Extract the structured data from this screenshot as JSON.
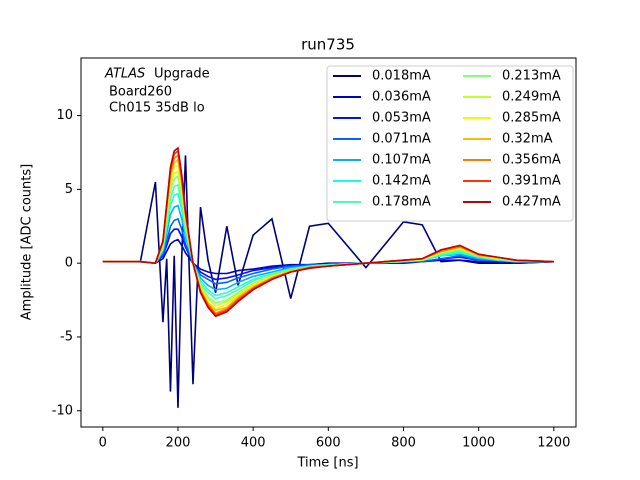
{
  "chart_data": {
    "type": "line",
    "title": "run735",
    "xlabel": "Time [ns]",
    "ylabel": "Amplitude [ADC counts]",
    "annotations": [
      "ATLAS",
      "Upgrade",
      "Board260",
      "Ch015 35dB lo"
    ],
    "xlim": [
      -58,
      1259
    ],
    "ylim": [
      -11.1,
      13.9
    ],
    "xticks": [
      0,
      200,
      400,
      600,
      800,
      1000,
      1200
    ],
    "yticks": [
      -10,
      -5,
      0,
      5,
      10
    ],
    "legend": "upper right",
    "x": [
      0,
      100,
      140,
      160,
      170,
      180,
      190,
      200,
      210,
      220,
      240,
      260,
      280,
      300,
      330,
      360,
      400,
      450,
      500,
      550,
      600,
      700,
      800,
      850,
      900,
      950,
      1000,
      1050,
      1100,
      1200
    ],
    "series": [
      {
        "name": "0.018mA",
        "color": "#00007f",
        "values": [
          0.1,
          0.1,
          5.5,
          -4,
          0.3,
          -8.7,
          0.5,
          -9.8,
          0.4,
          7.3,
          -8.2,
          3.8,
          0.2,
          -2,
          2.5,
          -1.5,
          1.9,
          3,
          -2.4,
          2.5,
          2.7,
          -0.3,
          2.8,
          2.6,
          0.1,
          0.2,
          0,
          0,
          0,
          0.1
        ]
      },
      {
        "name": "0.036mA",
        "color": "#0000c4",
        "values": [
          0.1,
          0.1,
          0,
          0.3,
          0.8,
          1.3,
          1.5,
          1.6,
          1.2,
          0.7,
          0,
          -0.4,
          -0.6,
          -0.7,
          -0.7,
          -0.5,
          -0.4,
          -0.2,
          -0.1,
          -0.1,
          0,
          0,
          0,
          0.1,
          0.2,
          0.2,
          0.1,
          0.1,
          0,
          0.1
        ]
      },
      {
        "name": "0.053mA",
        "color": "#0010ff",
        "values": [
          0.1,
          0.1,
          0,
          0.5,
          1.2,
          2,
          2.3,
          2.3,
          1.8,
          1.1,
          0,
          -0.6,
          -0.9,
          -1.1,
          -1,
          -0.8,
          -0.5,
          -0.3,
          -0.2,
          -0.1,
          -0.1,
          0,
          0.1,
          0.1,
          0.3,
          0.4,
          0.2,
          0.1,
          0.1,
          0.1
        ]
      },
      {
        "name": "0.071mA",
        "color": "#0064ff",
        "values": [
          0.1,
          0.1,
          0,
          0.6,
          1.5,
          2.5,
          2.9,
          3,
          2.3,
          1.3,
          0,
          -0.8,
          -1.1,
          -1.4,
          -1.3,
          -1,
          -0.7,
          -0.4,
          -0.2,
          -0.1,
          -0.1,
          0,
          0.1,
          0.1,
          0.3,
          0.5,
          0.2,
          0.2,
          0.1,
          0.1
        ]
      },
      {
        "name": "0.107mA",
        "color": "#00b0ff",
        "values": [
          0.1,
          0.1,
          0,
          0.8,
          2,
          3.3,
          3.8,
          3.9,
          3,
          1.8,
          0,
          -1,
          -1.5,
          -1.8,
          -1.7,
          -1.3,
          -0.9,
          -0.6,
          -0.3,
          -0.2,
          -0.1,
          0,
          0.1,
          0.2,
          0.5,
          0.6,
          0.3,
          0.2,
          0.1,
          0.1
        ]
      },
      {
        "name": "0.142mA",
        "color": "#19ffde",
        "values": [
          0.1,
          0.1,
          0,
          0.9,
          2.4,
          3.9,
          4.6,
          4.7,
          3.6,
          2.1,
          0,
          -1.2,
          -1.8,
          -2.2,
          -2,
          -1.6,
          -1.1,
          -0.7,
          -0.4,
          -0.2,
          -0.1,
          0,
          0.1,
          0.2,
          0.5,
          0.7,
          0.4,
          0.2,
          0.1,
          0.1
        ]
      },
      {
        "name": "0.178mA",
        "color": "#4dffaa",
        "values": [
          0.1,
          0.1,
          0,
          1,
          2.7,
          4.4,
          5.2,
          5.3,
          4.1,
          2.4,
          0,
          -1.4,
          -2,
          -2.4,
          -2.2,
          -1.8,
          -1.2,
          -0.7,
          -0.4,
          -0.2,
          -0.1,
          0,
          0.1,
          0.2,
          0.6,
          0.8,
          0.4,
          0.3,
          0.1,
          0.1
        ]
      },
      {
        "name": "0.213mA",
        "color": "#83ff73",
        "values": [
          0.1,
          0.1,
          0,
          1.1,
          3,
          4.9,
          5.7,
          5.9,
          4.5,
          2.6,
          0,
          -1.5,
          -2.3,
          -2.7,
          -2.5,
          -2,
          -1.4,
          -0.8,
          -0.5,
          -0.3,
          -0.2,
          0,
          0.2,
          0.2,
          0.7,
          0.9,
          0.5,
          0.3,
          0.2,
          0.1
        ]
      },
      {
        "name": "0.249mA",
        "color": "#bfff37",
        "values": [
          0.1,
          0.1,
          0,
          1.2,
          3.2,
          5.2,
          6.1,
          6.2,
          4.8,
          2.8,
          0,
          -1.6,
          -2.4,
          -2.9,
          -2.6,
          -2.1,
          -1.4,
          -0.9,
          -0.5,
          -0.3,
          -0.2,
          0,
          0.2,
          0.2,
          0.7,
          1,
          0.5,
          0.3,
          0.2,
          0.1
        ]
      },
      {
        "name": "0.285mA",
        "color": "#f4f802",
        "values": [
          0.1,
          0.1,
          0,
          1.3,
          3.4,
          5.5,
          6.5,
          6.6,
          5.1,
          3,
          0,
          -1.7,
          -2.6,
          -3.1,
          -2.8,
          -2.2,
          -1.5,
          -0.9,
          -0.5,
          -0.3,
          -0.2,
          0,
          0.2,
          0.3,
          0.8,
          1,
          0.5,
          0.3,
          0.2,
          0.1
        ]
      },
      {
        "name": "0.32mA",
        "color": "#ffb900",
        "values": [
          0.1,
          0.1,
          0,
          1.4,
          3.6,
          5.9,
          6.8,
          7,
          5.4,
          3.2,
          0,
          -1.8,
          -2.7,
          -3.2,
          -3,
          -2.3,
          -1.6,
          -1,
          -0.5,
          -0.3,
          -0.2,
          0,
          0.2,
          0.3,
          0.8,
          1.1,
          0.5,
          0.4,
          0.2,
          0.1
        ]
      },
      {
        "name": "0.356mA",
        "color": "#ff7a00",
        "values": [
          0.1,
          0.1,
          0,
          1.4,
          3.8,
          6.1,
          7.1,
          7.3,
          5.6,
          3.3,
          0,
          -1.9,
          -2.8,
          -3.4,
          -3.1,
          -2.4,
          -1.7,
          -1,
          -0.6,
          -0.3,
          -0.2,
          0,
          0.2,
          0.3,
          0.8,
          1.1,
          0.6,
          0.4,
          0.2,
          0.1
        ]
      },
      {
        "name": "0.391mA",
        "color": "#ff3800",
        "values": [
          0.1,
          0.1,
          0,
          1.5,
          3.9,
          6.3,
          7.4,
          7.6,
          5.8,
          3.4,
          0,
          -1.9,
          -2.9,
          -3.5,
          -3.2,
          -2.5,
          -1.7,
          -1.1,
          -0.6,
          -0.3,
          -0.2,
          0,
          0.2,
          0.3,
          0.9,
          1.2,
          0.6,
          0.4,
          0.2,
          0.1
        ]
      },
      {
        "name": "0.427mA",
        "color": "#c40000",
        "values": [
          0.1,
          0.1,
          0,
          1.5,
          4,
          6.5,
          7.6,
          7.8,
          6,
          3.5,
          0,
          -2,
          -3,
          -3.6,
          -3.3,
          -2.6,
          -1.8,
          -1.1,
          -0.6,
          -0.35,
          -0.2,
          0,
          0.2,
          0.3,
          0.9,
          1.2,
          0.6,
          0.4,
          0.2,
          0.1
        ]
      }
    ]
  }
}
